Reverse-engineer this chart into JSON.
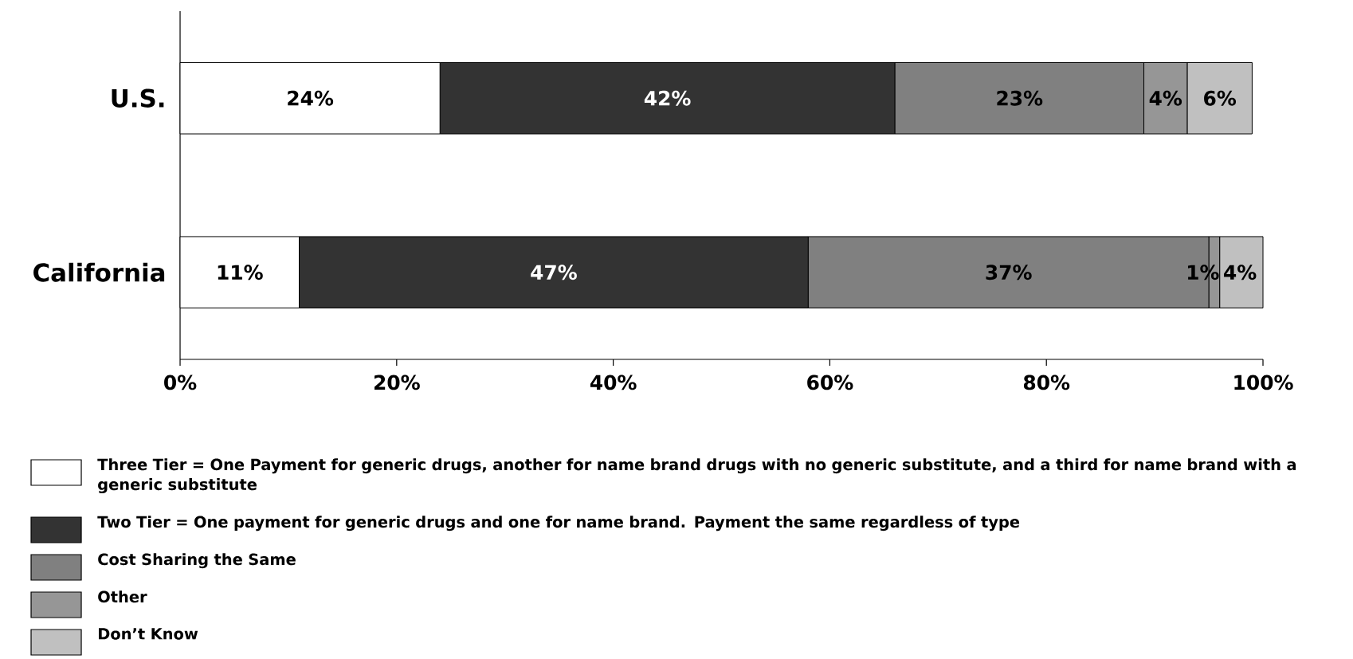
{
  "chart_data": {
    "type": "bar",
    "orientation": "horizontal",
    "stacked": true,
    "categories": [
      "U.S.",
      "California"
    ],
    "series": [
      {
        "name": "Three Tier = One Payment for generic drugs, another for name brand drugs with no generic substitute, and a third for name brand with a generic substitute",
        "color": "#ffffff",
        "values": [
          24,
          11
        ],
        "value_labels": [
          "24%",
          "11%"
        ]
      },
      {
        "name": "Two Tier = One payment for generic drugs and one for name brand.  Payment the same regardless of type",
        "color": "#333333",
        "values": [
          42,
          47
        ],
        "value_labels": [
          "42%",
          "47%"
        ]
      },
      {
        "name": "Cost Sharing the Same",
        "color": "#808080",
        "values": [
          23,
          37
        ],
        "value_labels": [
          "23%",
          "37%"
        ]
      },
      {
        "name": "Other",
        "color": "#969696",
        "values": [
          4,
          1
        ],
        "value_labels": [
          "4%",
          "1%"
        ]
      },
      {
        "name": "Don’t Know",
        "color": "#c0c0c0",
        "values": [
          6,
          4
        ],
        "value_labels": [
          "6%",
          "4%"
        ]
      }
    ],
    "xlim": [
      0,
      100
    ],
    "xticks": [
      {
        "value": 0,
        "label": "0%"
      },
      {
        "value": 20,
        "label": "20%"
      },
      {
        "value": 40,
        "label": "40%"
      },
      {
        "value": 60,
        "label": "60%"
      },
      {
        "value": 80,
        "label": "80%"
      },
      {
        "value": 100,
        "label": "100%"
      }
    ],
    "legend": "bottom",
    "grid": false
  }
}
